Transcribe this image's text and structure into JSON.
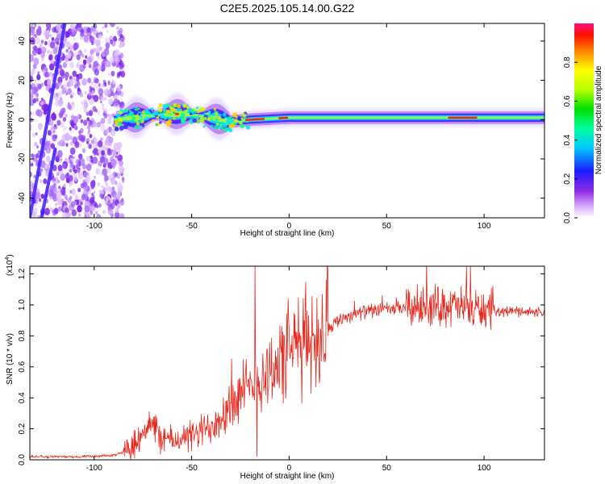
{
  "title": "C2E5.2025.105.14.00.G22",
  "colors": {
    "line": "#e8281c",
    "axis": "#000000",
    "background": "#ffffff"
  },
  "chart_data": [
    {
      "type": "heatmap",
      "xlabel": "Height of straight line (km)",
      "ylabel": "Frequency (Hz)",
      "xlim": [
        -133,
        131
      ],
      "ylim": [
        -50,
        49
      ],
      "xticks": [
        -100,
        -50,
        0,
        50,
        100
      ],
      "yticks": [
        -40,
        -20,
        0,
        20,
        40
      ],
      "colorbar": {
        "label": "Normalized spectral amplitude",
        "range": [
          0,
          1
        ],
        "ticks": [
          "0.0",
          "0.2",
          "0.4",
          "0.6",
          "0.8"
        ],
        "colormap": "rainbow (violet-white low, red-magenta high)"
      },
      "ridge": [
        {
          "x": -90,
          "y": 0
        },
        {
          "x": -70,
          "y": 2
        },
        {
          "x": -55,
          "y": 3
        },
        {
          "x": -40,
          "y": 1
        },
        {
          "x": -30,
          "y": -1
        },
        {
          "x": -20,
          "y": 0
        },
        {
          "x": 0,
          "y": 1
        },
        {
          "x": 50,
          "y": 1
        },
        {
          "x": 90,
          "y": 1
        },
        {
          "x": 131,
          "y": 1
        }
      ],
      "aliased_tracks": [
        {
          "x_start": -133,
          "y_start": -50,
          "x_end": -115,
          "y_end": 49
        },
        {
          "x_start": -127,
          "y_start": -50,
          "x_end": -120,
          "y_end": -15
        }
      ]
    },
    {
      "type": "line",
      "xlabel": "Height of straight line (km)",
      "ylabel": "SNR (10 * v/v)",
      "y_multiplier": "(x10^4)",
      "xlim": [
        -133,
        131
      ],
      "ylim": [
        0,
        1.25
      ],
      "xticks": [
        -100,
        -50,
        0,
        50,
        100
      ],
      "yticks": [
        "0.0",
        "0.2",
        "0.4",
        "0.6",
        "0.8",
        "1.0",
        "1.2"
      ],
      "series": [
        {
          "x": [
            -133,
            -120,
            -100,
            -90,
            -85,
            -80,
            -75,
            -72,
            -70,
            -65,
            -60,
            -55,
            -50,
            -45,
            -40,
            -35,
            -30,
            -25,
            -20,
            -15,
            -10,
            -5,
            0,
            5,
            10,
            15,
            20,
            25,
            30,
            40,
            50,
            60,
            70,
            80,
            90,
            100,
            110,
            120,
            131
          ],
          "y": [
            0.02,
            0.02,
            0.02,
            0.03,
            0.05,
            0.1,
            0.18,
            0.25,
            0.2,
            0.15,
            0.12,
            0.14,
            0.15,
            0.18,
            0.22,
            0.3,
            0.35,
            0.42,
            0.45,
            0.52,
            0.58,
            0.63,
            0.7,
            0.75,
            0.78,
            0.8,
            0.85,
            0.9,
            0.93,
            0.96,
            0.97,
            0.98,
            0.99,
            1.0,
            0.98,
            0.97,
            0.96,
            0.96,
            0.95
          ]
        }
      ]
    }
  ]
}
